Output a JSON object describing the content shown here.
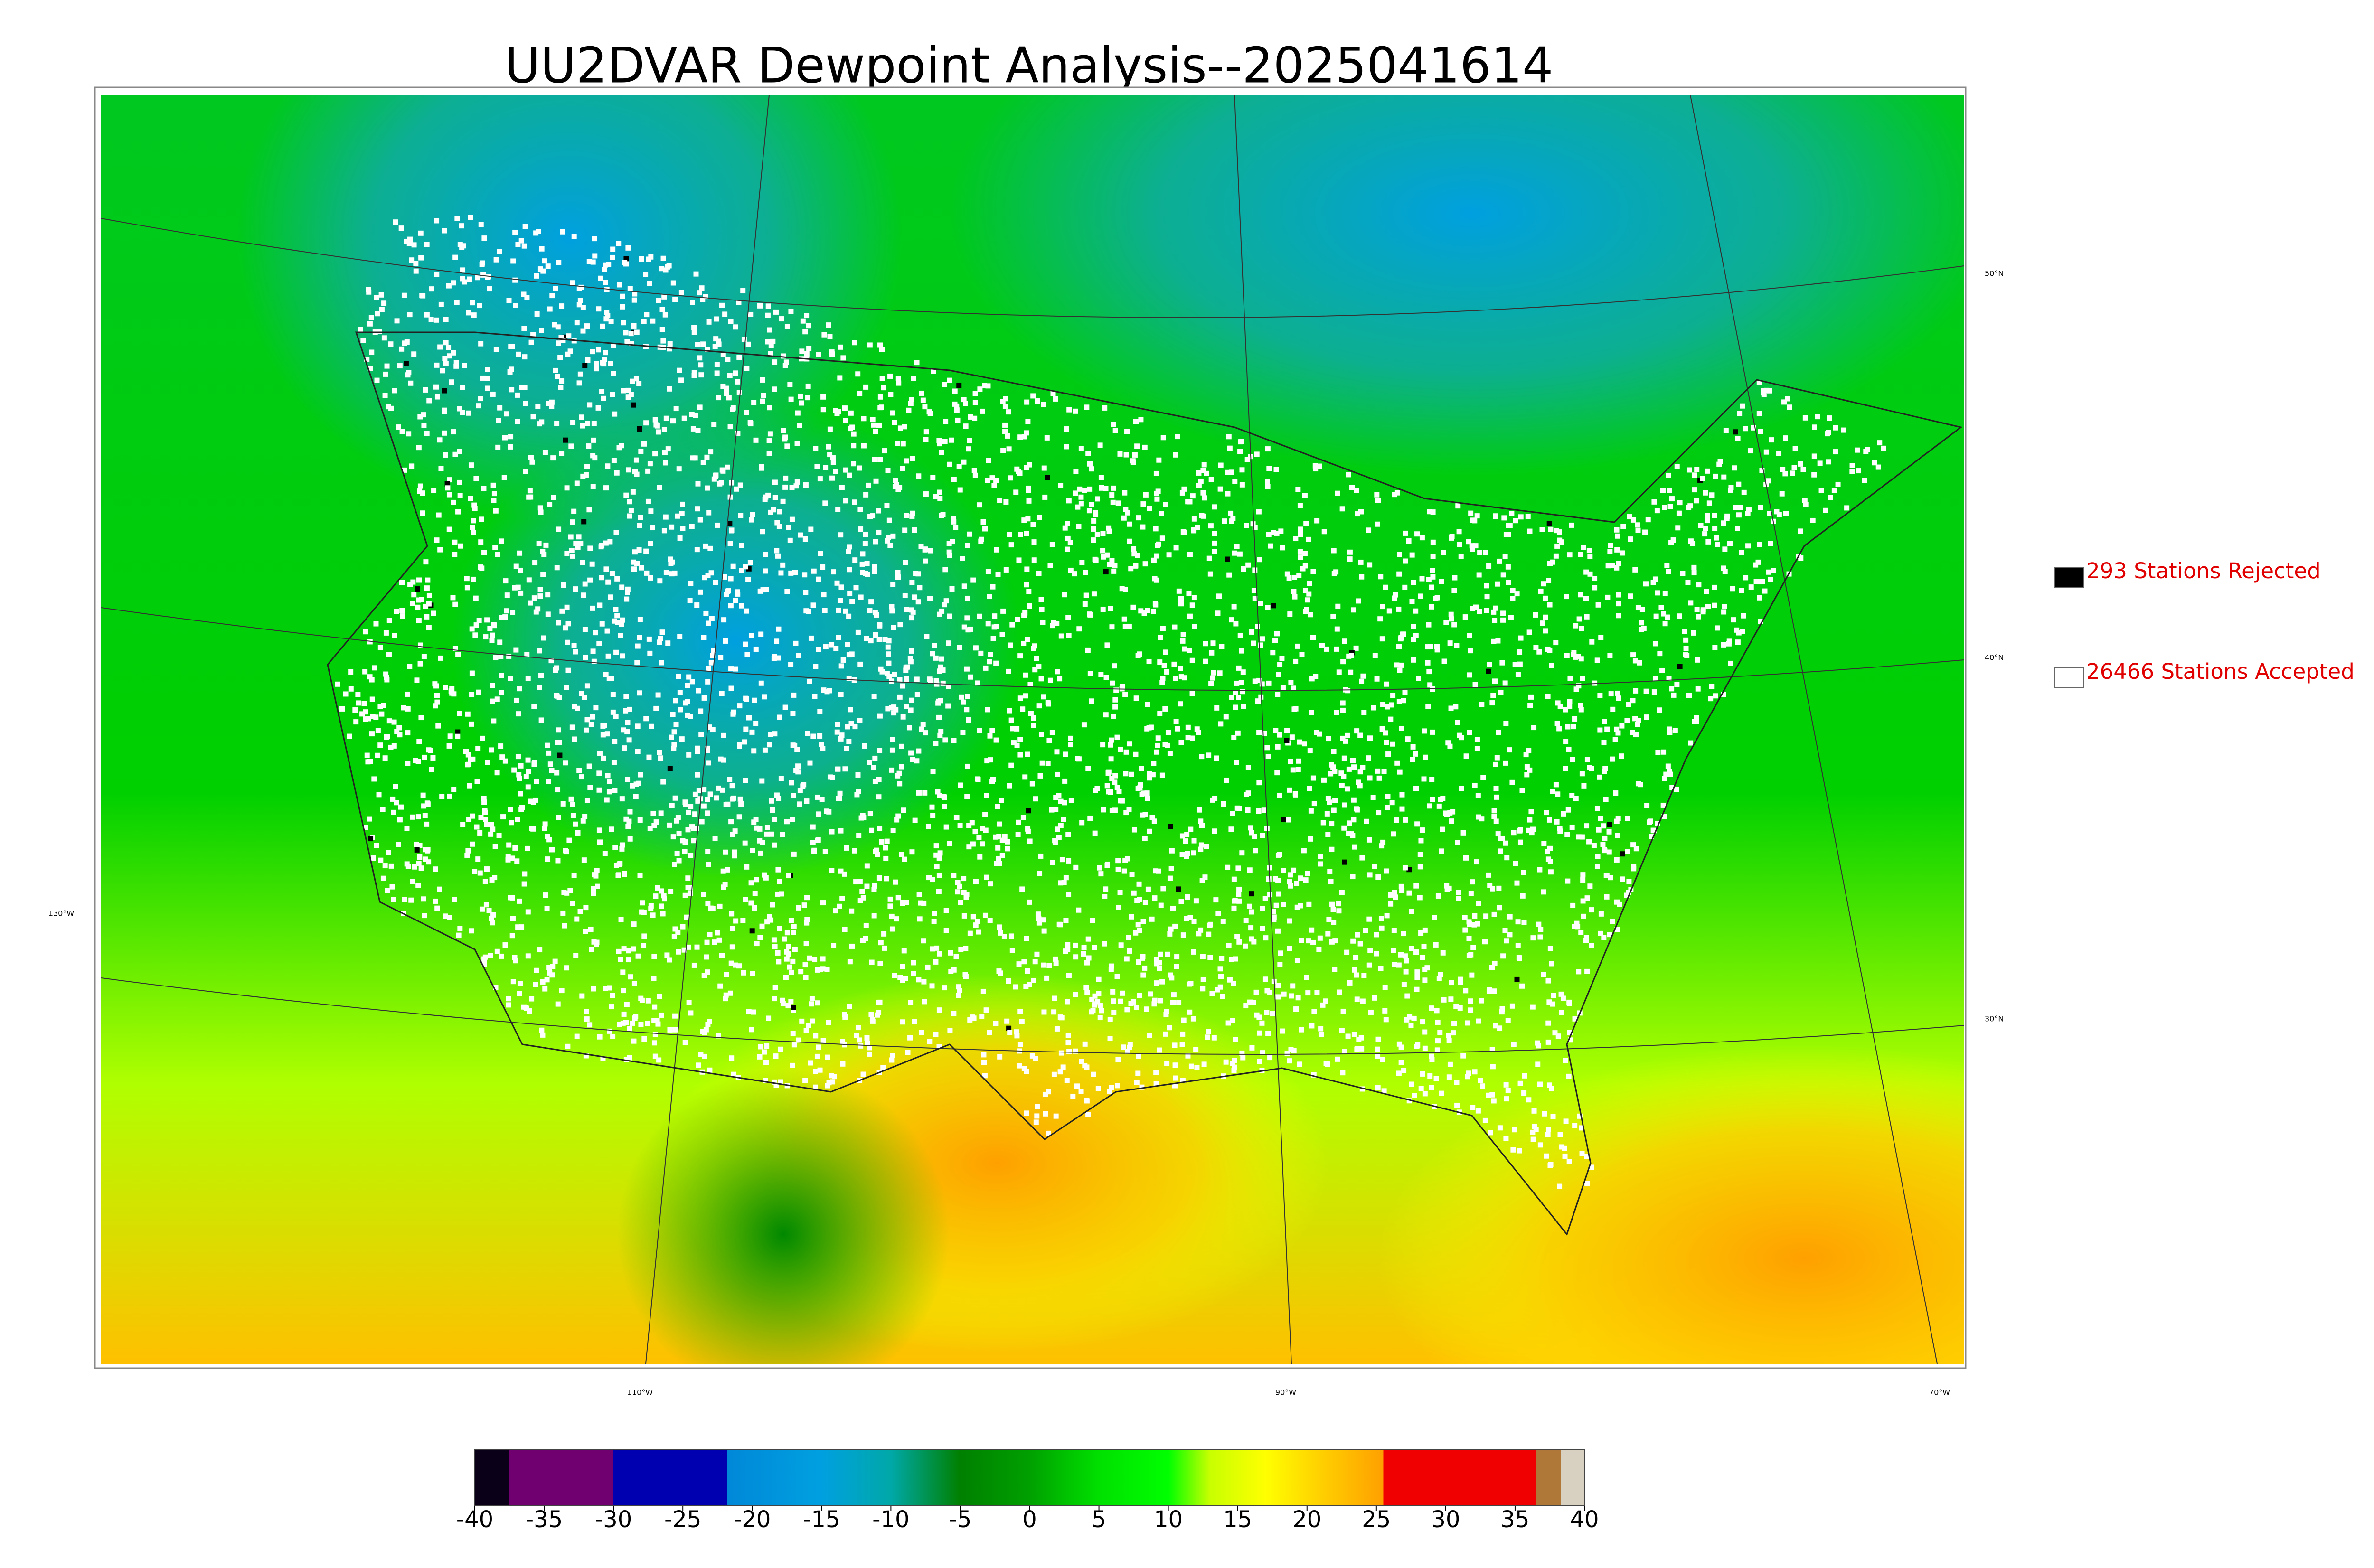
{
  "title": "UU2DVAR Dewpoint Analysis--2025041614",
  "legend": [
    {
      "label": "293 Stations Rejected",
      "color": "#000000"
    },
    {
      "label": "26466 Stations Accepted",
      "color": "#ffffff"
    }
  ],
  "lat_labels": [
    "50°N",
    "40°N",
    "30°N"
  ],
  "lon_labels": [
    "130°W",
    "110°W",
    "90°W",
    "70°W"
  ],
  "colorbar": {
    "range": [
      -40,
      40
    ],
    "ticks": [
      -40,
      -35,
      -30,
      -25,
      -20,
      -15,
      -10,
      -5,
      0,
      5,
      10,
      15,
      20,
      25,
      30,
      35,
      40
    ],
    "stops": [
      [
        -40,
        "#0a0018"
      ],
      [
        -37.5,
        "#0a0018"
      ],
      [
        -37.5,
        "#700070"
      ],
      [
        -30,
        "#700070"
      ],
      [
        -30,
        "#0000b0"
      ],
      [
        -21.8,
        "#0000b0"
      ],
      [
        -21.8,
        "#0088d8"
      ],
      [
        -15,
        "#00a0e0"
      ],
      [
        -10,
        "#00a8a8"
      ],
      [
        -5,
        "#008000"
      ],
      [
        0,
        "#00a000"
      ],
      [
        5,
        "#00e000"
      ],
      [
        10,
        "#00ff00"
      ],
      [
        13,
        "#c8ff00"
      ],
      [
        17,
        "#ffff00"
      ],
      [
        21,
        "#ffd000"
      ],
      [
        25.5,
        "#ffa000"
      ],
      [
        25.5,
        "#f00000"
      ],
      [
        36.5,
        "#f00000"
      ],
      [
        36.5,
        "#b07838"
      ],
      [
        38.3,
        "#b07838"
      ],
      [
        38.3,
        "#d8d0c0"
      ],
      [
        40,
        "#d8d0c0"
      ]
    ]
  }
}
